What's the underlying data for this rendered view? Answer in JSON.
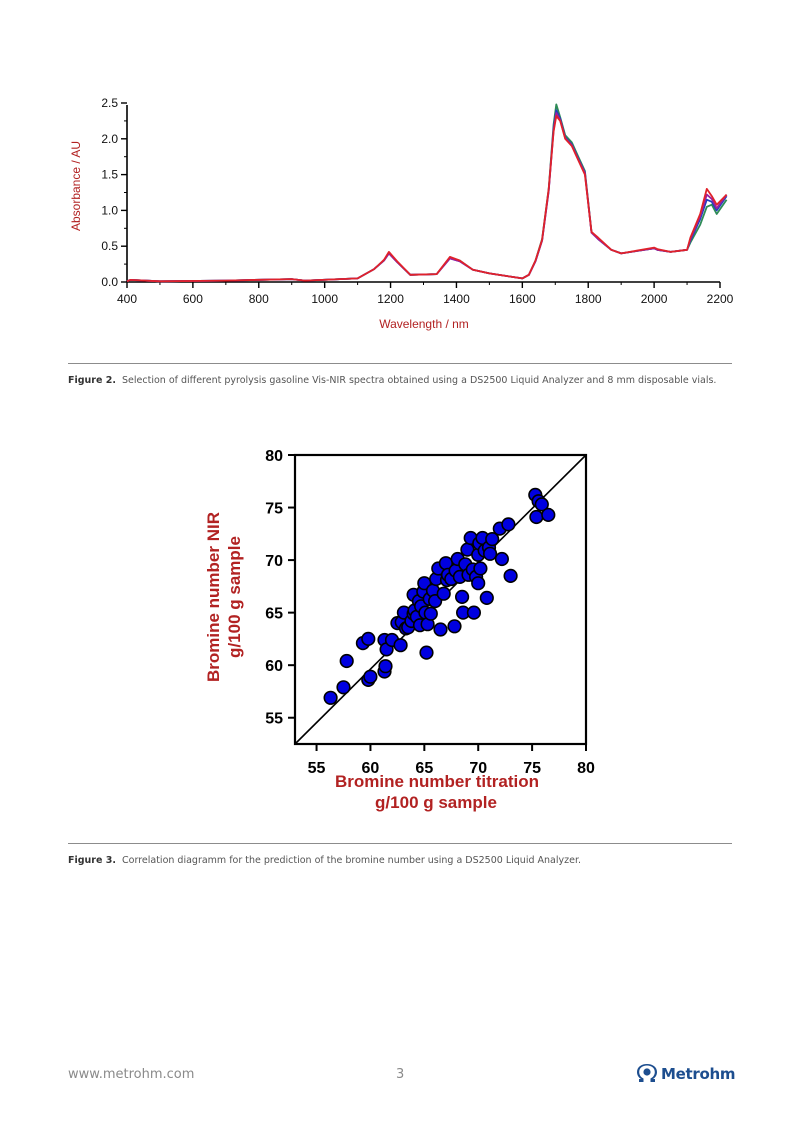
{
  "figure2": {
    "caption_label": "Figure 2.",
    "caption_text": "Selection of different pyrolysis gasoline Vis-NIR spectra obtained using a DS2500 Liquid Analyzer and 8 mm disposable vials."
  },
  "figure3": {
    "caption_label": "Figure 3.",
    "caption_text": "Correlation diagramm for the prediction of the bromine number using a DS2500 Liquid Analyzer."
  },
  "footer": {
    "url": "www.metrohm.com",
    "page": "3",
    "logo_text": "Metrohm",
    "logo_icon": "metrohm-omega-icon"
  },
  "colors": {
    "axis_label": "#b22222",
    "scatter_fill": "#0000e0",
    "text": "#555555"
  },
  "chart_data": [
    {
      "type": "line",
      "xlabel": "Wavelength / nm",
      "ylabel": "Absorbance / AU",
      "xlim": [
        400,
        2200
      ],
      "ylim": [
        0,
        2.5
      ],
      "x_ticks": [
        400,
        600,
        800,
        1000,
        1200,
        1400,
        1600,
        1800,
        2000,
        2200
      ],
      "y_ticks": [
        0.0,
        0.5,
        1.0,
        1.5,
        2.0,
        2.5
      ],
      "y_tick_labels": [
        "0.0",
        "0.5",
        "1.0",
        "1.5",
        "2.0",
        "2.5"
      ],
      "series": [
        {
          "color": "#2e8b57",
          "x": [
            400,
            410,
            500,
            700,
            900,
            940,
            1100,
            1150,
            1180,
            1195,
            1220,
            1260,
            1340,
            1380,
            1410,
            1450,
            1500,
            1600,
            1620,
            1640,
            1660,
            1680,
            1695,
            1703,
            1715,
            1730,
            1750,
            1770,
            1790,
            1810,
            1830,
            1870,
            1900,
            2000,
            2010,
            2050,
            2100,
            2110,
            2140,
            2160,
            2175,
            2190,
            2220
          ],
          "y": [
            0.01,
            0.03,
            0.01,
            0.02,
            0.04,
            0.02,
            0.05,
            0.18,
            0.3,
            0.41,
            0.28,
            0.1,
            0.11,
            0.34,
            0.3,
            0.17,
            0.12,
            0.05,
            0.1,
            0.3,
            0.6,
            1.3,
            2.2,
            2.48,
            2.3,
            2.05,
            1.95,
            1.75,
            1.55,
            0.7,
            0.6,
            0.45,
            0.4,
            0.47,
            0.45,
            0.42,
            0.45,
            0.55,
            0.8,
            1.05,
            1.08,
            0.95,
            1.15
          ]
        },
        {
          "color": "#1f3fbf",
          "x": [
            400,
            410,
            500,
            700,
            900,
            940,
            1100,
            1150,
            1180,
            1195,
            1220,
            1260,
            1340,
            1380,
            1410,
            1450,
            1500,
            1600,
            1620,
            1640,
            1660,
            1680,
            1695,
            1703,
            1715,
            1730,
            1750,
            1770,
            1790,
            1810,
            1830,
            1870,
            1900,
            2000,
            2010,
            2050,
            2100,
            2110,
            2140,
            2160,
            2175,
            2190,
            2220
          ],
          "y": [
            0.01,
            0.03,
            0.01,
            0.02,
            0.04,
            0.02,
            0.05,
            0.18,
            0.3,
            0.4,
            0.28,
            0.1,
            0.11,
            0.33,
            0.29,
            0.17,
            0.12,
            0.05,
            0.1,
            0.29,
            0.58,
            1.28,
            2.15,
            2.4,
            2.28,
            2.02,
            1.92,
            1.72,
            1.53,
            0.69,
            0.6,
            0.45,
            0.4,
            0.47,
            0.45,
            0.42,
            0.45,
            0.58,
            0.88,
            1.15,
            1.12,
            1.0,
            1.2
          ]
        },
        {
          "color": "#9b1fa0",
          "x": [
            400,
            410,
            500,
            700,
            900,
            940,
            1100,
            1150,
            1180,
            1195,
            1220,
            1260,
            1340,
            1380,
            1410,
            1450,
            1500,
            1600,
            1620,
            1640,
            1660,
            1680,
            1695,
            1703,
            1715,
            1730,
            1750,
            1770,
            1790,
            1810,
            1830,
            1870,
            1900,
            2000,
            2010,
            2050,
            2100,
            2110,
            2140,
            2160,
            2175,
            2190,
            2220
          ],
          "y": [
            0.01,
            0.03,
            0.01,
            0.02,
            0.04,
            0.02,
            0.05,
            0.18,
            0.3,
            0.4,
            0.28,
            0.1,
            0.11,
            0.33,
            0.29,
            0.17,
            0.12,
            0.05,
            0.1,
            0.29,
            0.58,
            1.27,
            2.12,
            2.36,
            2.26,
            2.01,
            1.91,
            1.71,
            1.52,
            0.69,
            0.6,
            0.45,
            0.4,
            0.47,
            0.45,
            0.42,
            0.45,
            0.6,
            0.92,
            1.22,
            1.16,
            1.03,
            1.22
          ]
        },
        {
          "color": "#e0222a",
          "x": [
            400,
            410,
            500,
            700,
            900,
            940,
            1100,
            1150,
            1180,
            1195,
            1220,
            1260,
            1340,
            1380,
            1410,
            1450,
            1500,
            1600,
            1620,
            1640,
            1660,
            1680,
            1695,
            1703,
            1715,
            1730,
            1750,
            1770,
            1790,
            1810,
            1830,
            1870,
            1900,
            2000,
            2010,
            2050,
            2100,
            2110,
            2140,
            2160,
            2175,
            2190,
            2220
          ],
          "y": [
            0.01,
            0.03,
            0.01,
            0.02,
            0.04,
            0.02,
            0.05,
            0.18,
            0.31,
            0.42,
            0.29,
            0.1,
            0.11,
            0.35,
            0.3,
            0.17,
            0.12,
            0.05,
            0.1,
            0.3,
            0.59,
            1.3,
            2.1,
            2.32,
            2.25,
            2.0,
            1.9,
            1.7,
            1.5,
            0.7,
            0.62,
            0.45,
            0.4,
            0.48,
            0.46,
            0.42,
            0.45,
            0.62,
            0.95,
            1.3,
            1.2,
            1.08,
            1.22
          ]
        }
      ]
    },
    {
      "type": "scatter",
      "xlabel_lines": [
        "Bromine number titration",
        "g/100 g sample"
      ],
      "ylabel_lines": [
        "Bromine number NIR",
        "g/100 g sample"
      ],
      "xlim": [
        53,
        80
      ],
      "ylim": [
        52.5,
        80
      ],
      "x_ticks": [
        55,
        60,
        65,
        70,
        75,
        80
      ],
      "y_ticks": [
        55,
        60,
        65,
        70,
        75,
        80
      ],
      "diagonal": true,
      "x": [
        56.3,
        57.5,
        57.8,
        59.3,
        59.8,
        59.8,
        60.0,
        61.3,
        61.3,
        61.4,
        61.5,
        62.0,
        62.5,
        62.8,
        62.9,
        63.1,
        63.3,
        63.5,
        63.8,
        64.0,
        64.0,
        64.1,
        64.3,
        64.5,
        64.6,
        64.7,
        64.9,
        65.0,
        65.1,
        65.2,
        65.3,
        65.5,
        65.6,
        65.8,
        66.0,
        66.1,
        66.3,
        66.5,
        66.8,
        67.0,
        67.1,
        67.2,
        67.5,
        67.8,
        67.9,
        68.1,
        68.3,
        68.5,
        68.6,
        68.8,
        69.0,
        69.1,
        69.3,
        69.5,
        69.6,
        69.8,
        70.0,
        70.0,
        70.1,
        70.2,
        70.4,
        70.6,
        70.8,
        71.0,
        71.1,
        71.3,
        72.0,
        72.2,
        72.8,
        73.0,
        75.3,
        75.4,
        75.6,
        75.9,
        76.5
      ],
      "y": [
        56.9,
        57.9,
        60.4,
        62.1,
        62.5,
        58.6,
        58.9,
        62.4,
        59.4,
        59.9,
        61.5,
        62.4,
        64.0,
        61.9,
        64.1,
        65.0,
        63.5,
        63.6,
        64.2,
        64.9,
        66.7,
        65.2,
        64.6,
        66.1,
        63.8,
        65.6,
        67.0,
        67.8,
        65.0,
        61.2,
        63.9,
        66.3,
        64.9,
        67.1,
        66.1,
        68.2,
        69.2,
        63.4,
        66.8,
        69.7,
        68.1,
        68.6,
        68.2,
        63.7,
        69.0,
        70.1,
        68.4,
        66.5,
        65.0,
        69.6,
        71.0,
        68.6,
        72.1,
        69.1,
        65.0,
        68.4,
        70.5,
        67.8,
        71.6,
        69.2,
        72.1,
        70.9,
        66.4,
        71.2,
        70.6,
        72.0,
        73.0,
        70.1,
        73.4,
        68.5,
        76.2,
        74.1,
        75.6,
        75.3,
        74.3
      ]
    }
  ]
}
